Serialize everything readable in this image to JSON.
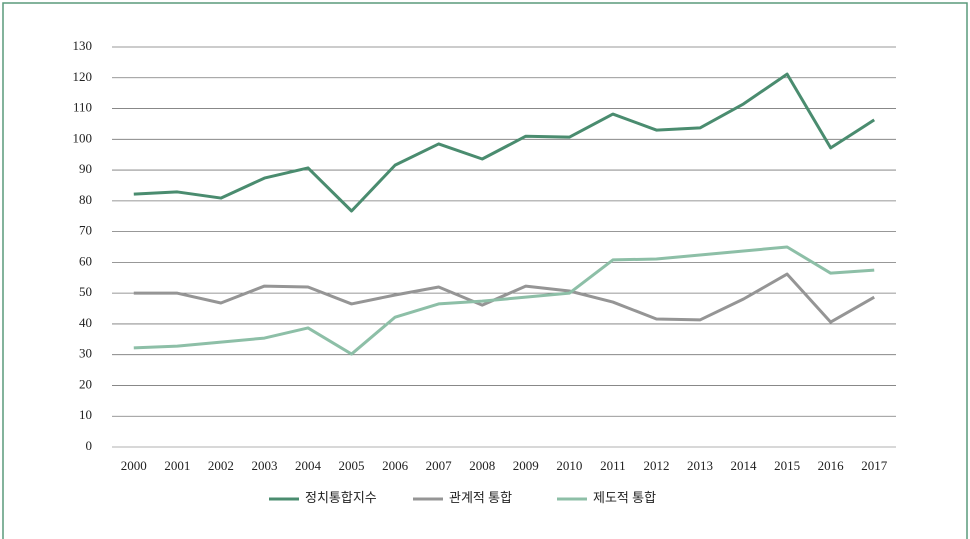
{
  "chart_data": {
    "type": "line",
    "categories": [
      "2000",
      "2001",
      "2002",
      "2003",
      "2004",
      "2005",
      "2006",
      "2007",
      "2008",
      "2009",
      "2010",
      "2011",
      "2012",
      "2013",
      "2014",
      "2015",
      "2016",
      "2017"
    ],
    "series": [
      {
        "name": "정치통합지수",
        "color": "#4a8c6f",
        "values": [
          82.2,
          82.9,
          80.9,
          87.4,
          90.7,
          76.7,
          91.6,
          98.5,
          93.6,
          101,
          100.7,
          108.2,
          103,
          103.7,
          111.5,
          121.2,
          97.2,
          106.3
        ]
      },
      {
        "name": "관계적 통합",
        "color": "#959595",
        "values": [
          50,
          50,
          46.8,
          52.3,
          52,
          46.5,
          49.4,
          52,
          46.1,
          52.3,
          50.7,
          47.1,
          41.6,
          41.3,
          48.1,
          56.2,
          40.6,
          48.7
        ]
      },
      {
        "name": "제도적 통합",
        "color": "#8dbfa7",
        "values": [
          32.2,
          32.8,
          34.1,
          35.4,
          38.7,
          30.2,
          42.2,
          46.5,
          47.4,
          48.7,
          50,
          60.8,
          61.1,
          62.4,
          63.7,
          65,
          56.5,
          57.5
        ]
      }
    ],
    "ylim": [
      0,
      130
    ],
    "yticks": [
      0,
      10,
      20,
      30,
      40,
      50,
      60,
      70,
      80,
      90,
      100,
      110,
      120,
      130
    ],
    "grid": true,
    "legend": "bottom"
  }
}
